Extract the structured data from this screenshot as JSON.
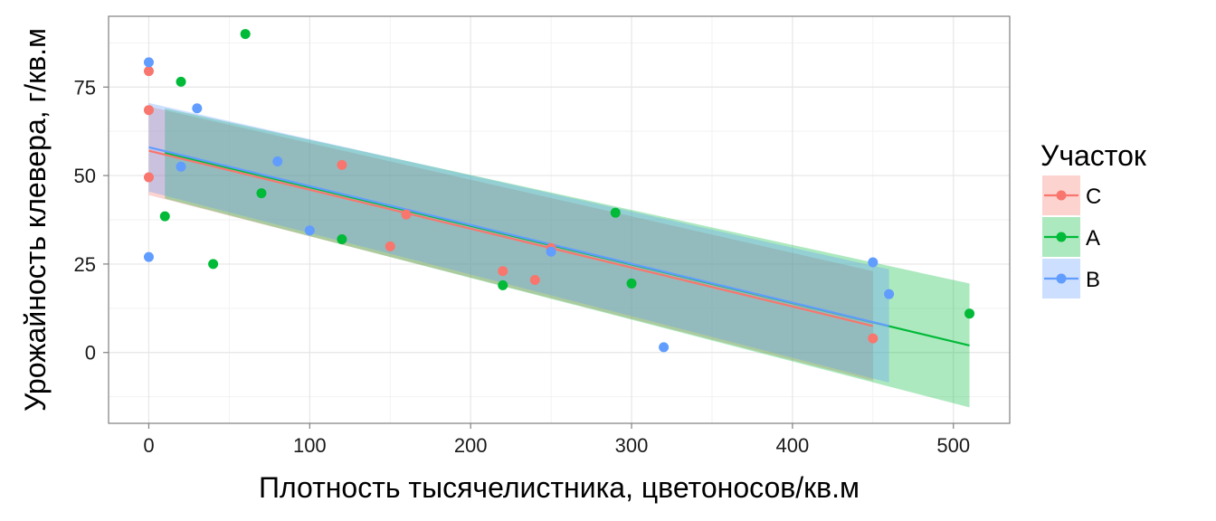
{
  "chart_data": {
    "type": "scatter",
    "xlabel": "Плотность тысячелистника, цветоносов/кв.м",
    "ylabel": "Урожайность клевера, г/кв.м",
    "xlim": [
      -25,
      535
    ],
    "ylim": [
      -20,
      95
    ],
    "x_ticks": [
      0,
      100,
      200,
      300,
      400,
      500
    ],
    "y_ticks": [
      0,
      25,
      50,
      75
    ],
    "grid": true,
    "legend_title": "Участок",
    "legend_position": "right",
    "series": [
      {
        "name": "C",
        "color": "#F8766D",
        "points": [
          [
            0,
            79.5
          ],
          [
            0,
            68.5
          ],
          [
            0,
            49.5
          ],
          [
            120,
            53
          ],
          [
            150,
            30
          ],
          [
            160,
            39
          ],
          [
            220,
            23
          ],
          [
            240,
            20.5
          ],
          [
            250,
            29.5
          ],
          [
            450,
            4
          ]
        ],
        "fit": {
          "x_range": [
            0,
            450
          ],
          "start": 57,
          "end": 7.5
        },
        "ci": {
          "lower": [
            0,
            44.5
          ],
          "upper": [
            0,
            69.5
          ],
          "lower_end": [
            450,
            -8
          ],
          "upper_end": [
            450,
            23
          ]
        }
      },
      {
        "name": "A",
        "color": "#00BA38",
        "points": [
          [
            10,
            38.5
          ],
          [
            20,
            76.5
          ],
          [
            40,
            25
          ],
          [
            60,
            90
          ],
          [
            70,
            45
          ],
          [
            120,
            32
          ],
          [
            220,
            19
          ],
          [
            290,
            39.5
          ],
          [
            300,
            19.5
          ],
          [
            510,
            11
          ]
        ],
        "fit": {
          "x_range": [
            10,
            510
          ],
          "start": 56.5,
          "end": 2
        },
        "ci": {
          "lower": [
            10,
            43.5
          ],
          "upper": [
            10,
            69
          ],
          "lower_end": [
            510,
            -15.5
          ],
          "upper_end": [
            510,
            19.5
          ]
        }
      },
      {
        "name": "B",
        "color": "#619CFF",
        "points": [
          [
            0,
            82
          ],
          [
            0,
            27
          ],
          [
            20,
            52.5
          ],
          [
            30,
            69
          ],
          [
            80,
            54
          ],
          [
            100,
            34.5
          ],
          [
            250,
            28.5
          ],
          [
            320,
            1.5
          ],
          [
            450,
            25.5
          ],
          [
            460,
            16.5
          ]
        ],
        "fit": {
          "x_range": [
            0,
            460
          ],
          "start": 58,
          "end": 7.5
        },
        "ci": {
          "lower": [
            0,
            45.5
          ],
          "upper": [
            0,
            70.5
          ],
          "lower_end": [
            460,
            -8.5
          ],
          "upper_end": [
            460,
            23.5
          ]
        }
      }
    ]
  }
}
